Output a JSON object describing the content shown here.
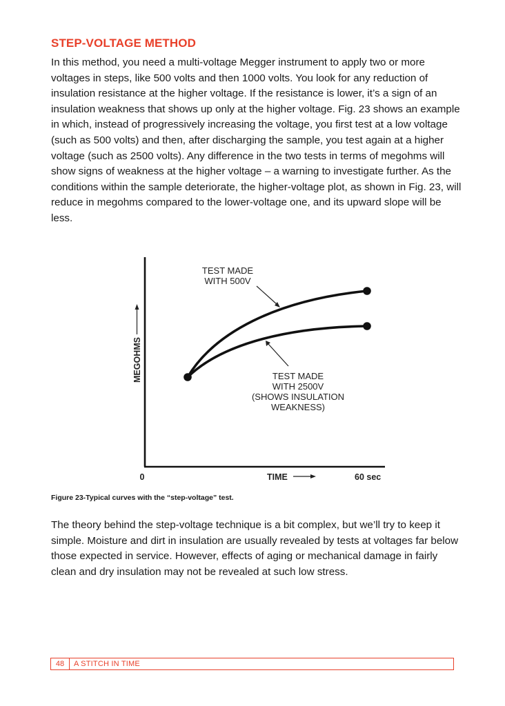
{
  "heading": "STEP-VOLTAGE METHOD",
  "paragraph1": "In this method, you need a multi-voltage Megger instrument to apply two or more voltages in steps, like 500 volts and then 1000 volts. You look for any reduction of insulation resistance at the higher voltage. If the resistance is lower, it’s a sign of an insulation weakness that shows up only at the higher voltage. Fig. 23 shows an example in which, instead of progressively increasing the voltage, you first test at a low voltage (such as 500 volts) and then, after discharging the sample, you test again at a higher voltage (such as 2500 volts). Any difference in the two tests in terms of megohms will show signs of weakness at the higher voltage – a warning to investigate further. As the conditions within the sample deteriorate, the higher-voltage plot, as shown in Fig. 23, will reduce in megohms compared to the lower-voltage one, and its upward slope will be less.",
  "figure": {
    "y_axis_label": "MEGOHMS",
    "x_axis_label": "TIME",
    "x_start_label": "0",
    "x_end_label": "60 sec",
    "annotation_500v": [
      "TEST MADE",
      "WITH 500V"
    ],
    "annotation_2500v": [
      "TEST MADE",
      "WITH 2500V",
      "(SHOWS INSULATION",
      "WEAKNESS)"
    ]
  },
  "caption": "Figure 23-Typical curves with the “step-voltage” test.",
  "paragraph2": "The theory behind the step-voltage technique is a bit complex, but we’ll try to keep it simple. Moisture and dirt in insulation are usually revealed by tests at voltages far below those expected in service. However, effects of aging or mechanical damage in fairly clean and dry insulation may not be revealed at such low stress.",
  "footer": {
    "page_number": "48",
    "book_title": "A STITCH IN TIME"
  },
  "colors": {
    "accent": "#e8402a",
    "text": "#1a1a1a"
  }
}
